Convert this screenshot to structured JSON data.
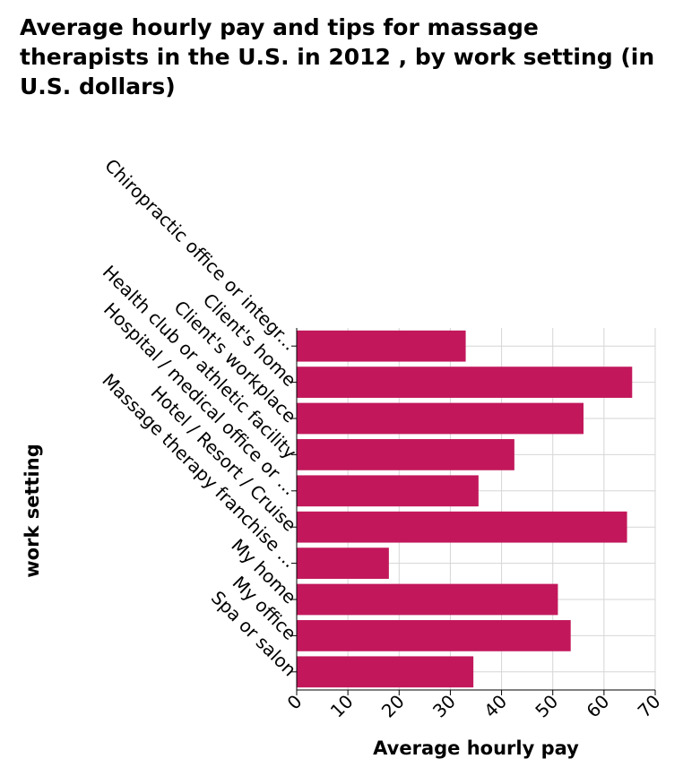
{
  "chart_data": {
    "type": "bar",
    "orientation": "horizontal",
    "title": "Average hourly pay and tips for massage therapists in the U.S. in 2012 , by work setting (in U.S. dollars)",
    "xlabel": "Average hourly pay",
    "ylabel": "work setting",
    "categories": [
      "Chiropractic office or integr...",
      "Client's home",
      "Client's workplace",
      "Health club or athletic facility",
      "Hospital / medical office or ...",
      "Hotel / Resort / Cruise",
      "Massage therapy franchise ...",
      "My home",
      "My office",
      "Spa or salon"
    ],
    "values": [
      33,
      65.5,
      56,
      42.5,
      35.5,
      64.5,
      18,
      51,
      53.5,
      34.5
    ],
    "xlim": [
      0,
      70
    ],
    "xticks": [
      "0",
      "10",
      "20",
      "30",
      "40",
      "50",
      "60",
      "70"
    ],
    "bar_color": "#c2185b",
    "grid": true
  }
}
